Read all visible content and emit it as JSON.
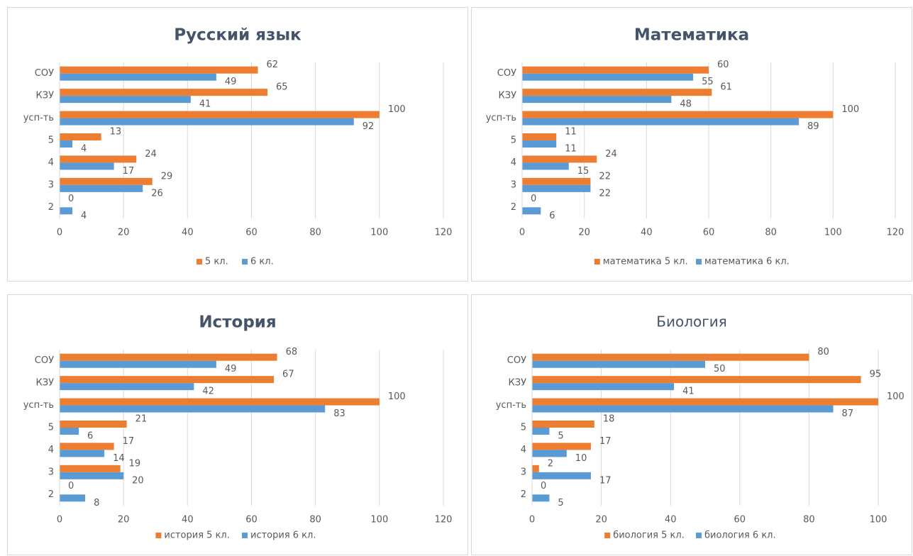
{
  "chart_data": [
    {
      "type": "bar",
      "orientation": "horizontal",
      "title": "Русский язык",
      "title_bold": true,
      "categories": [
        "2",
        "3",
        "4",
        "5",
        "усп-ть",
        "КЗУ",
        "СОУ"
      ],
      "series": [
        {
          "name": "5 кл.",
          "color": "#ed7d31",
          "values": [
            0,
            29,
            24,
            13,
            100,
            65,
            62
          ]
        },
        {
          "name": "6 кл.",
          "color": "#5b9bd5",
          "values": [
            4,
            26,
            17,
            4,
            92,
            41,
            49
          ]
        }
      ],
      "xlim": [
        0,
        120
      ],
      "xticks": [
        0,
        20,
        40,
        60,
        80,
        100,
        120
      ],
      "grid": true
    },
    {
      "type": "bar",
      "orientation": "horizontal",
      "title": "Математика",
      "title_bold": true,
      "categories": [
        "2",
        "3",
        "4",
        "5",
        "усп-ть",
        "КЗУ",
        "СОУ"
      ],
      "series": [
        {
          "name": "математика 5 кл.",
          "color": "#ed7d31",
          "values": [
            0,
            22,
            24,
            11,
            100,
            61,
            60
          ]
        },
        {
          "name": "математика 6 кл.",
          "color": "#5b9bd5",
          "values": [
            6,
            22,
            15,
            11,
            89,
            48,
            55
          ]
        }
      ],
      "xlim": [
        0,
        120
      ],
      "xticks": [
        0,
        20,
        40,
        60,
        80,
        100,
        120
      ],
      "grid": true
    },
    {
      "type": "bar",
      "orientation": "horizontal",
      "title": "История",
      "title_bold": true,
      "categories": [
        "2",
        "3",
        "4",
        "5",
        "усп-ть",
        "КЗУ",
        "СОУ"
      ],
      "series": [
        {
          "name": "история 5 кл.",
          "color": "#ed7d31",
          "values": [
            0,
            19,
            17,
            21,
            100,
            67,
            68
          ]
        },
        {
          "name": "история 6 кл.",
          "color": "#5b9bd5",
          "values": [
            8,
            20,
            14,
            6,
            83,
            42,
            49
          ]
        }
      ],
      "xlim": [
        0,
        120
      ],
      "xticks": [
        0,
        20,
        40,
        60,
        80,
        100,
        120
      ],
      "grid": true
    },
    {
      "type": "bar",
      "orientation": "horizontal",
      "title": "Биология",
      "title_bold": false,
      "categories": [
        "2",
        "3",
        "4",
        "5",
        "усп-ть",
        "КЗУ",
        "СОУ"
      ],
      "series": [
        {
          "name": "биология 5 кл.",
          "color": "#ed7d31",
          "values": [
            0,
            2,
            17,
            18,
            100,
            95,
            80
          ]
        },
        {
          "name": "биология 6 кл.",
          "color": "#5b9bd5",
          "values": [
            5,
            17,
            10,
            5,
            87,
            41,
            50
          ]
        }
      ],
      "xlim": [
        0,
        100
      ],
      "xticks": [
        0,
        20,
        40,
        60,
        80,
        100
      ],
      "grid": true
    }
  ]
}
